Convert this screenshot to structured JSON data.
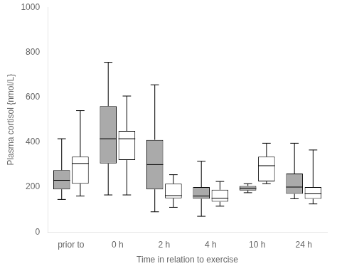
{
  "chart_data": {
    "type": "box",
    "xlabel": "Time in relation to exercise",
    "ylabel": "Plasma cortisol {nmol/L}",
    "categories": [
      "prior to",
      "0 h",
      "2 h",
      "4 h",
      "10 h",
      "24 h"
    ],
    "series": [
      {
        "color": "#aaaaaa",
        "values": [
          {
            "whislo": 145,
            "q1": 190,
            "med": 230,
            "q3": 275,
            "whishi": 415
          },
          {
            "whislo": 165,
            "q1": 305,
            "med": 415,
            "q3": 560,
            "whishi": 755
          },
          {
            "whislo": 90,
            "q1": 190,
            "med": 300,
            "q3": 410,
            "whishi": 655
          },
          {
            "whislo": 70,
            "q1": 148,
            "med": 160,
            "q3": 200,
            "whishi": 315
          },
          {
            "whislo": 175,
            "q1": 185,
            "med": 195,
            "q3": 205,
            "whishi": 215
          },
          {
            "whislo": 148,
            "q1": 170,
            "med": 200,
            "q3": 260,
            "whishi": 395
          }
        ]
      },
      {
        "color": "#ffffff",
        "values": [
          {
            "whislo": 160,
            "q1": 215,
            "med": 305,
            "q3": 335,
            "whishi": 540
          },
          {
            "whislo": 165,
            "q1": 320,
            "med": 415,
            "q3": 450,
            "whishi": 605
          },
          {
            "whislo": 110,
            "q1": 150,
            "med": 162,
            "q3": 215,
            "whishi": 255
          },
          {
            "whislo": 115,
            "q1": 135,
            "med": 150,
            "q3": 188,
            "whishi": 225
          },
          {
            "whislo": 215,
            "q1": 225,
            "med": 295,
            "q3": 335,
            "whishi": 395
          },
          {
            "whislo": 125,
            "q1": 148,
            "med": 170,
            "q3": 200,
            "whishi": 365
          }
        ]
      }
    ],
    "ylim": [
      0,
      1000
    ],
    "yticks": [
      0,
      200,
      400,
      600,
      800,
      1000
    ],
    "grid": false
  }
}
